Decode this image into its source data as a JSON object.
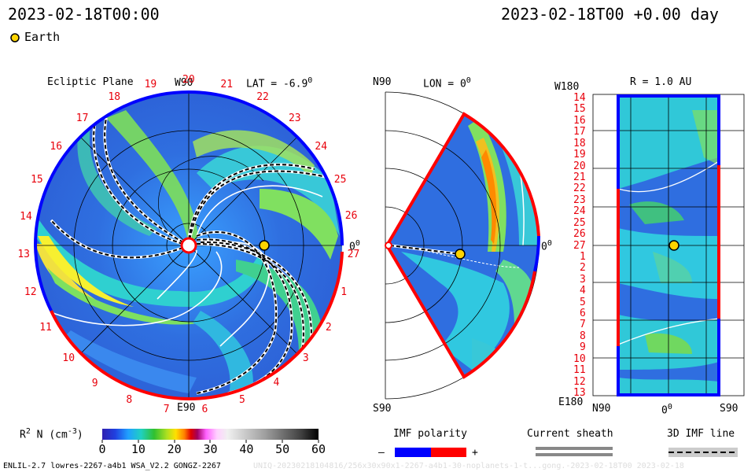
{
  "header": {
    "left_time": "2023-02-18T00:00",
    "right_time": "2023-02-18T00 +0.00 day"
  },
  "legend": {
    "earth_label": "Earth",
    "earth_color": "#ffff00"
  },
  "ecliptic_panel": {
    "title": "Ecliptic Plane",
    "lat_label": "LAT = -6.9",
    "lat_degree": "0",
    "top_label": "W90",
    "bottom_label": "E90",
    "right_label": "0",
    "right_degree": "0",
    "tick_numbers": [
      "19",
      "20",
      "21",
      "22",
      "23",
      "24",
      "25",
      "26",
      "27",
      "1",
      "2",
      "3",
      "4",
      "5",
      "6",
      "7",
      "8",
      "9",
      "10",
      "11",
      "12",
      "13",
      "14",
      "15",
      "16",
      "17",
      "18"
    ]
  },
  "meridional_panel": {
    "top_left": "N90",
    "lon_label": "LON = 0",
    "lon_degree": "0",
    "bottom_left": "S90",
    "right_label": "0",
    "right_degree": "0"
  },
  "sphere_panel": {
    "title": "R = 1.0 AU",
    "top_left": "W180",
    "bottom_left": "E180",
    "left_ticks": [
      "14",
      "15",
      "16",
      "17",
      "18",
      "19",
      "20",
      "21",
      "22",
      "23",
      "24",
      "25",
      "26",
      "27",
      "1",
      "2",
      "3",
      "4",
      "5",
      "6",
      "7",
      "8",
      "9",
      "10",
      "11",
      "12",
      "13"
    ],
    "bottom_left_axis": "N90",
    "bottom_mid_axis": "0",
    "bottom_mid_degree": "0",
    "bottom_right_axis": "S90"
  },
  "colorbar": {
    "label_main": "R",
    "label_sup": "2",
    "label_rest": " N (cm",
    "label_exp": "-3",
    "label_end": ")",
    "ticks": [
      "0",
      "10",
      "20",
      "30",
      "40",
      "50",
      "60"
    ]
  },
  "imf_legend": {
    "title": "IMF polarity",
    "minus": "–",
    "plus": "+",
    "neg_color": "#0000ff",
    "pos_color": "#ff0000"
  },
  "sheath_legend": {
    "title": "Current sheath"
  },
  "imf3d_legend": {
    "title": "3D IMF line"
  },
  "footer": {
    "left": "ENLIL-2.7 lowres-2267-a4b1 WSA_V2.2 GONGZ-2267",
    "right": "UNIQ-20230218104816/256x30x90x1-2267-a4b1-30-noplanets-1-t...gong.-2023-02-18T00  2023-02-18"
  }
}
